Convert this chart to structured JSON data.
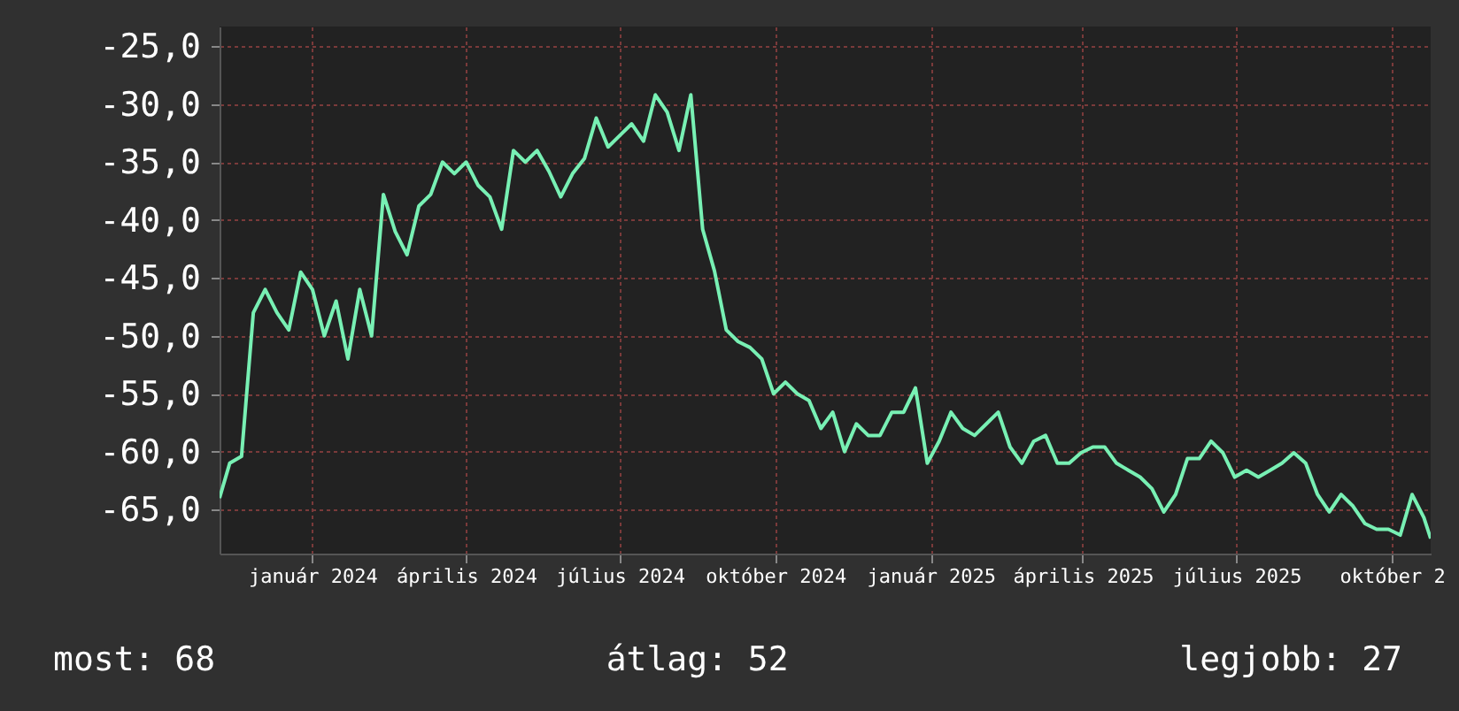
{
  "chart_data": {
    "type": "line",
    "xlim": [
      "2023-11-07",
      "2025-10-24"
    ],
    "ylim": [
      -68.8,
      -23.3
    ],
    "xticks": [
      {
        "value": "2024-01-01",
        "label": "január 2024"
      },
      {
        "value": "2024-04-01",
        "label": "április 2024"
      },
      {
        "value": "2024-07-01",
        "label": "július 2024"
      },
      {
        "value": "2024-10-01",
        "label": "október 2024"
      },
      {
        "value": "2025-01-01",
        "label": "január 2025"
      },
      {
        "value": "2025-04-01",
        "label": "április 2025"
      },
      {
        "value": "2025-07-01",
        "label": "július 2025"
      },
      {
        "value": "2025-10-01",
        "label": "október 2"
      }
    ],
    "yticks": [
      {
        "value": -25,
        "label": "-25,0"
      },
      {
        "value": -30,
        "label": "-30,0"
      },
      {
        "value": -35,
        "label": "-35,0"
      },
      {
        "value": -40,
        "label": "-40,0"
      },
      {
        "value": -45,
        "label": "-45,0"
      },
      {
        "value": -50,
        "label": "-50,0"
      },
      {
        "value": -55,
        "label": "-55,0"
      },
      {
        "value": -60,
        "label": "-60,0"
      },
      {
        "value": -65,
        "label": "-65,0"
      }
    ],
    "grid": true,
    "x": [
      "2023-11-07",
      "2023-11-13",
      "2023-11-20",
      "2023-11-27",
      "2023-12-04",
      "2023-12-11",
      "2023-12-18",
      "2023-12-25",
      "2024-01-01",
      "2024-01-08",
      "2024-01-15",
      "2024-01-22",
      "2024-01-29",
      "2024-02-05",
      "2024-02-12",
      "2024-02-19",
      "2024-02-26",
      "2024-03-04",
      "2024-03-11",
      "2024-03-18",
      "2024-03-25",
      "2024-04-01",
      "2024-04-08",
      "2024-04-15",
      "2024-04-22",
      "2024-04-29",
      "2024-05-06",
      "2024-05-13",
      "2024-05-20",
      "2024-05-27",
      "2024-06-03",
      "2024-06-10",
      "2024-06-17",
      "2024-06-24",
      "2024-07-01",
      "2024-07-08",
      "2024-07-15",
      "2024-07-22",
      "2024-07-29",
      "2024-08-05",
      "2024-08-12",
      "2024-08-19",
      "2024-08-26",
      "2024-09-02",
      "2024-09-09",
      "2024-09-16",
      "2024-09-23",
      "2024-09-30",
      "2024-10-07",
      "2024-10-14",
      "2024-10-21",
      "2024-10-28",
      "2024-11-04",
      "2024-11-11",
      "2024-11-18",
      "2024-11-25",
      "2024-12-02",
      "2024-12-09",
      "2024-12-16",
      "2024-12-23",
      "2024-12-30",
      "2025-01-06",
      "2025-01-13",
      "2025-01-20",
      "2025-01-27",
      "2025-02-03",
      "2025-02-10",
      "2025-02-17",
      "2025-02-24",
      "2025-03-03",
      "2025-03-10",
      "2025-03-17",
      "2025-03-24",
      "2025-03-31",
      "2025-04-07",
      "2025-04-14",
      "2025-04-21",
      "2025-04-28",
      "2025-05-05",
      "2025-05-12",
      "2025-05-19",
      "2025-05-26",
      "2025-06-02",
      "2025-06-09",
      "2025-06-16",
      "2025-06-23",
      "2025-06-30",
      "2025-07-07",
      "2025-07-14",
      "2025-07-21",
      "2025-07-28",
      "2025-08-04",
      "2025-08-11",
      "2025-08-18",
      "2025-08-25",
      "2025-09-01",
      "2025-09-08",
      "2025-09-15",
      "2025-09-22",
      "2025-09-29",
      "2025-10-06",
      "2025-10-13",
      "2025-10-20",
      "2025-10-24"
    ],
    "series": [
      {
        "color": "#78f0b4",
        "values": [
          -64,
          -61,
          -60.4,
          -48,
          -46,
          -48,
          -49.5,
          -44.5,
          -46,
          -50,
          -47,
          -52,
          -46,
          -50,
          -37.8,
          -41,
          -43,
          -38.8,
          -37.8,
          -35,
          -36,
          -35,
          -37,
          -38,
          -40.8,
          -34,
          -35,
          -34,
          -35.8,
          -38,
          -36,
          -34.7,
          -31.2,
          -33.7,
          -32.7,
          -31.7,
          -33.2,
          -29.2,
          -30.7,
          -34,
          -29.2,
          -40.8,
          -44.4,
          -49.5,
          -50.5,
          -51,
          -52,
          -55,
          -54,
          -55,
          -55.6,
          -58,
          -56.6,
          -60,
          -57.6,
          -58.6,
          -58.6,
          -56.6,
          -56.6,
          -54.5,
          -61,
          -59.1,
          -56.6,
          -58,
          -58.6,
          -57.6,
          -56.6,
          -59.6,
          -61,
          -59.1,
          -58.6,
          -61,
          -61,
          -60.1,
          -59.6,
          -59.6,
          -61,
          -61.6,
          -62.2,
          -63.2,
          -65.2,
          -63.7,
          -60.6,
          -60.6,
          -59.1,
          -60.1,
          -62.2,
          -61.6,
          -62.2,
          -61.6,
          -61,
          -60.1,
          -61,
          -63.7,
          -65.2,
          -63.7,
          -64.7,
          -66.2,
          -66.7,
          -66.7,
          -67.2,
          -63.7,
          -65.7,
          -67.5
        ]
      }
    ],
    "annotations": [
      "most: 68",
      "átlag: 52",
      "legjobb: 27"
    ]
  }
}
